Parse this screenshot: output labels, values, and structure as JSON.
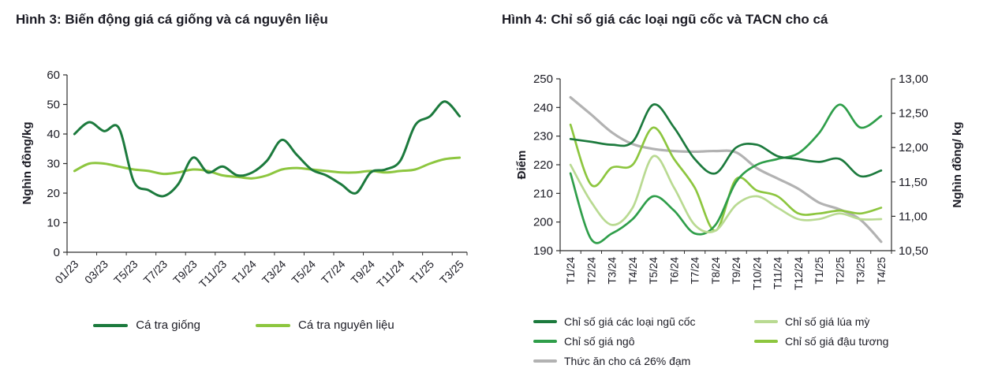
{
  "page": {
    "background": "#ffffff",
    "text_color": "#1b1b24"
  },
  "chart_data": [
    {
      "type": "line",
      "title": "Hình 3: Biến động giá cá giống và cá nguyên liệu",
      "ylabel_left": "Nghìn đồng/kg",
      "ylim_left": [
        0,
        60
      ],
      "yticks_left": [
        0,
        10,
        20,
        30,
        40,
        50,
        60
      ],
      "grid": false,
      "legend_position": "bottom",
      "x_label_every": 2,
      "x_labels": [
        "01/23",
        "03/23",
        "T5/23",
        "T7/23",
        "T9/23",
        "T11/23",
        "T1/24",
        "T3/24",
        "T5/24",
        "T7/24",
        "T9/24",
        "T11/24",
        "T1/25",
        "T3/25"
      ],
      "series": [
        {
          "id": "ca-tra-giong",
          "name": "Cá tra giống",
          "color": "#1c7a3d",
          "axis": "left",
          "values": [
            40,
            44,
            41,
            42,
            24,
            21,
            19,
            23,
            32,
            27,
            29,
            26,
            27,
            31,
            38,
            33,
            28,
            26,
            23,
            20,
            27,
            28,
            31,
            43,
            46,
            51,
            46
          ]
        },
        {
          "id": "ca-tra-nguyen-lieu",
          "name": "Cá tra nguyên liệu",
          "color": "#8dc63f",
          "axis": "left",
          "values": [
            27.5,
            30,
            30,
            29,
            28,
            27.5,
            26.5,
            27,
            28,
            27.5,
            26,
            25.5,
            25,
            26,
            28,
            28.5,
            28,
            27.5,
            27,
            27,
            27.5,
            27,
            27.5,
            28,
            30,
            31.5,
            32
          ]
        }
      ]
    },
    {
      "type": "line",
      "title": "Hình 4: Chỉ số giá các loại ngũ cốc và TACN cho cá",
      "ylabel_left": "Điểm",
      "ylabel_right": "Nghìn đồng/ kg",
      "ylim_left": [
        190,
        250
      ],
      "yticks_left": [
        190,
        200,
        210,
        220,
        230,
        240,
        250
      ],
      "ylim_right": [
        10.5,
        13.0
      ],
      "yticks_right": [
        "10,50",
        "11,00",
        "11,50",
        "12,00",
        "12,50",
        "13,00"
      ],
      "grid": false,
      "legend_position": "bottom",
      "x_label_every": 1,
      "x_labels": [
        "T1/24",
        "T2/24",
        "T3/24",
        "T4/24",
        "T5/24",
        "T6/24",
        "T7/24",
        "T8/24",
        "T9/24",
        "T10/24",
        "T11/24",
        "T12/24",
        "T1/25",
        "T2/25",
        "T3/25",
        "T4/25"
      ],
      "series": [
        {
          "id": "chi-so-gia-ngu-coc",
          "name": "Chỉ số giá các loại ngũ cốc",
          "color": "#1c7a3d",
          "axis": "left",
          "values": [
            229,
            228,
            227,
            228,
            241,
            233,
            222,
            217,
            226,
            227,
            223,
            222,
            221,
            222,
            216,
            218
          ]
        },
        {
          "id": "chi-so-gia-lua-my",
          "name": "Chỉ số giá lúa mỳ",
          "color": "#b9da92",
          "axis": "left",
          "values": [
            220,
            207,
            199,
            205,
            223,
            212,
            199,
            197,
            206,
            209,
            205,
            201,
            201,
            203,
            201,
            201
          ]
        },
        {
          "id": "chi-so-gia-ngo",
          "name": "Chỉ số giá ngô",
          "color": "#2f9e4a",
          "axis": "left",
          "values": [
            217,
            194,
            196,
            201,
            209,
            204,
            196,
            199,
            214,
            220,
            222,
            224,
            231,
            241,
            233,
            237
          ]
        },
        {
          "id": "chi-so-gia-dau-tuong",
          "name": "Chỉ số giá đậu tương",
          "color": "#8dc63f",
          "axis": "left",
          "values": [
            234,
            213,
            219,
            220,
            233,
            222,
            212,
            197,
            215,
            211,
            209,
            203,
            203,
            204,
            203,
            205
          ]
        },
        {
          "id": "thuc-an-cho-ca",
          "name": "Thức ăn cho cá 26% đạm",
          "color": "#b2b2b2",
          "axis": "right",
          "width": 3.2,
          "values": [
            12.73,
            12.48,
            12.22,
            12.05,
            11.98,
            11.95,
            11.94,
            11.95,
            11.93,
            11.7,
            11.55,
            11.4,
            11.2,
            11.1,
            10.95,
            10.63
          ]
        }
      ]
    }
  ]
}
